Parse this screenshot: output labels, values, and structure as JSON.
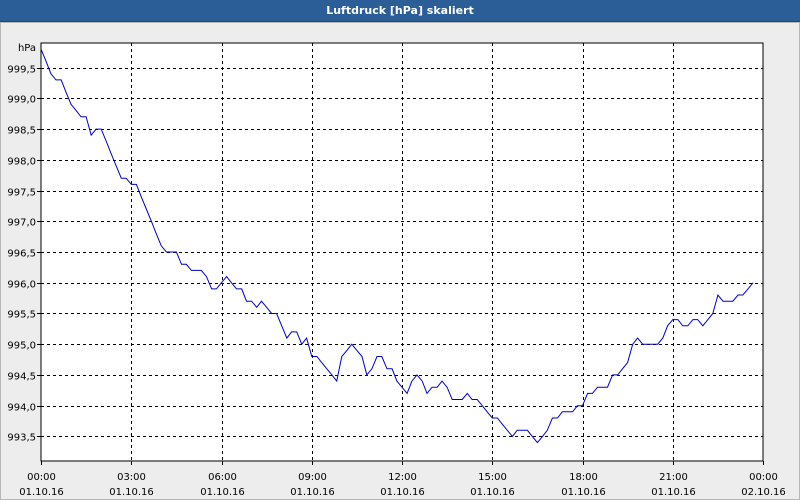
{
  "window": {
    "title": "Luftdruck [hPa] skaliert"
  },
  "chart_data": {
    "type": "line",
    "title": "Luftdruck [hPa] skaliert",
    "ylabel": "hPa",
    "xlabel": "",
    "ylim": [
      993.1,
      999.9
    ],
    "xlim_hours": [
      0,
      24
    ],
    "grid": true,
    "y_ticks": [
      {
        "value": 999.5,
        "label": "999,5"
      },
      {
        "value": 999.0,
        "label": "999,0"
      },
      {
        "value": 998.5,
        "label": "998,5"
      },
      {
        "value": 998.0,
        "label": "998,0"
      },
      {
        "value": 997.5,
        "label": "997,5"
      },
      {
        "value": 997.0,
        "label": "997,0"
      },
      {
        "value": 996.5,
        "label": "996,5"
      },
      {
        "value": 996.0,
        "label": "996,0"
      },
      {
        "value": 995.5,
        "label": "995,5"
      },
      {
        "value": 995.0,
        "label": "995,0"
      },
      {
        "value": 994.5,
        "label": "994,5"
      },
      {
        "value": 994.0,
        "label": "994,0"
      },
      {
        "value": 993.5,
        "label": "993,5"
      }
    ],
    "x_ticks": [
      {
        "hour": 0,
        "time": "00:00",
        "date": "01.10.16"
      },
      {
        "hour": 3,
        "time": "03:00",
        "date": "01.10.16"
      },
      {
        "hour": 6,
        "time": "06:00",
        "date": "01.10.16"
      },
      {
        "hour": 9,
        "time": "09:00",
        "date": "01.10.16"
      },
      {
        "hour": 12,
        "time": "12:00",
        "date": "01.10.16"
      },
      {
        "hour": 15,
        "time": "15:00",
        "date": "01.10.16"
      },
      {
        "hour": 18,
        "time": "18:00",
        "date": "01.10.16"
      },
      {
        "hour": 21,
        "time": "21:00",
        "date": "01.10.16"
      },
      {
        "hour": 24,
        "time": "00:00",
        "date": "02.10.16"
      }
    ],
    "series": [
      {
        "color": "#0000cc",
        "points": [
          [
            0.0,
            999.8
          ],
          [
            0.17,
            999.6
          ],
          [
            0.33,
            999.4
          ],
          [
            0.5,
            999.3
          ],
          [
            0.67,
            999.3
          ],
          [
            0.83,
            999.1
          ],
          [
            1.0,
            998.9
          ],
          [
            1.17,
            998.8
          ],
          [
            1.33,
            998.7
          ],
          [
            1.5,
            998.7
          ],
          [
            1.67,
            998.4
          ],
          [
            1.83,
            998.5
          ],
          [
            2.0,
            998.5
          ],
          [
            2.17,
            998.3
          ],
          [
            2.33,
            998.1
          ],
          [
            2.5,
            997.9
          ],
          [
            2.67,
            997.7
          ],
          [
            2.83,
            997.7
          ],
          [
            3.0,
            997.6
          ],
          [
            3.17,
            997.6
          ],
          [
            3.33,
            997.4
          ],
          [
            3.5,
            997.2
          ],
          [
            3.67,
            997.0
          ],
          [
            3.83,
            996.8
          ],
          [
            4.0,
            996.6
          ],
          [
            4.17,
            996.5
          ],
          [
            4.33,
            996.5
          ],
          [
            4.5,
            996.5
          ],
          [
            4.67,
            996.3
          ],
          [
            4.83,
            996.3
          ],
          [
            5.0,
            996.2
          ],
          [
            5.17,
            996.2
          ],
          [
            5.33,
            996.2
          ],
          [
            5.5,
            996.1
          ],
          [
            5.67,
            995.9
          ],
          [
            5.83,
            995.9
          ],
          [
            6.0,
            996.0
          ],
          [
            6.17,
            996.1
          ],
          [
            6.33,
            996.0
          ],
          [
            6.5,
            995.9
          ],
          [
            6.67,
            995.9
          ],
          [
            6.83,
            995.7
          ],
          [
            7.0,
            995.7
          ],
          [
            7.17,
            995.6
          ],
          [
            7.33,
            995.7
          ],
          [
            7.5,
            995.6
          ],
          [
            7.67,
            995.5
          ],
          [
            7.83,
            995.5
          ],
          [
            8.0,
            995.3
          ],
          [
            8.17,
            995.1
          ],
          [
            8.33,
            995.2
          ],
          [
            8.5,
            995.2
          ],
          [
            8.67,
            995.0
          ],
          [
            8.83,
            995.1
          ],
          [
            9.0,
            994.8
          ],
          [
            9.17,
            994.8
          ],
          [
            9.33,
            994.7
          ],
          [
            9.5,
            994.6
          ],
          [
            9.67,
            994.5
          ],
          [
            9.83,
            994.4
          ],
          [
            10.0,
            994.8
          ],
          [
            10.17,
            994.9
          ],
          [
            10.33,
            995.0
          ],
          [
            10.5,
            994.9
          ],
          [
            10.67,
            994.8
          ],
          [
            10.83,
            994.5
          ],
          [
            11.0,
            994.6
          ],
          [
            11.17,
            994.8
          ],
          [
            11.33,
            994.8
          ],
          [
            11.5,
            994.6
          ],
          [
            11.67,
            994.6
          ],
          [
            11.83,
            994.4
          ],
          [
            12.0,
            994.3
          ],
          [
            12.17,
            994.2
          ],
          [
            12.33,
            994.4
          ],
          [
            12.5,
            994.5
          ],
          [
            12.67,
            994.4
          ],
          [
            12.83,
            994.2
          ],
          [
            13.0,
            994.3
          ],
          [
            13.17,
            994.3
          ],
          [
            13.33,
            994.4
          ],
          [
            13.5,
            994.3
          ],
          [
            13.67,
            994.1
          ],
          [
            13.83,
            994.1
          ],
          [
            14.0,
            994.1
          ],
          [
            14.17,
            994.2
          ],
          [
            14.33,
            994.1
          ],
          [
            14.5,
            994.1
          ],
          [
            14.67,
            994.0
          ],
          [
            14.83,
            993.9
          ],
          [
            15.0,
            993.8
          ],
          [
            15.17,
            993.8
          ],
          [
            15.33,
            993.7
          ],
          [
            15.5,
            993.6
          ],
          [
            15.67,
            993.5
          ],
          [
            15.83,
            993.6
          ],
          [
            16.0,
            993.6
          ],
          [
            16.17,
            993.6
          ],
          [
            16.33,
            993.5
          ],
          [
            16.5,
            993.4
          ],
          [
            16.67,
            993.5
          ],
          [
            16.83,
            993.6
          ],
          [
            17.0,
            993.8
          ],
          [
            17.17,
            993.8
          ],
          [
            17.33,
            993.9
          ],
          [
            17.5,
            993.9
          ],
          [
            17.67,
            993.9
          ],
          [
            17.83,
            994.0
          ],
          [
            18.0,
            994.0
          ],
          [
            18.17,
            994.2
          ],
          [
            18.33,
            994.2
          ],
          [
            18.5,
            994.3
          ],
          [
            18.67,
            994.3
          ],
          [
            18.83,
            994.3
          ],
          [
            19.0,
            994.5
          ],
          [
            19.17,
            994.5
          ],
          [
            19.33,
            994.6
          ],
          [
            19.5,
            994.7
          ],
          [
            19.67,
            995.0
          ],
          [
            19.83,
            995.1
          ],
          [
            20.0,
            995.0
          ],
          [
            20.17,
            995.0
          ],
          [
            20.33,
            995.0
          ],
          [
            20.5,
            995.0
          ],
          [
            20.67,
            995.1
          ],
          [
            20.83,
            995.3
          ],
          [
            21.0,
            995.4
          ],
          [
            21.17,
            995.4
          ],
          [
            21.33,
            995.3
          ],
          [
            21.5,
            995.3
          ],
          [
            21.67,
            995.4
          ],
          [
            21.83,
            995.4
          ],
          [
            22.0,
            995.3
          ],
          [
            22.17,
            995.4
          ],
          [
            22.33,
            995.5
          ],
          [
            22.5,
            995.8
          ],
          [
            22.67,
            995.7
          ],
          [
            22.83,
            995.7
          ],
          [
            23.0,
            995.7
          ],
          [
            23.17,
            995.8
          ],
          [
            23.33,
            995.8
          ],
          [
            23.5,
            995.9
          ],
          [
            23.67,
            996.0
          ]
        ]
      }
    ]
  }
}
